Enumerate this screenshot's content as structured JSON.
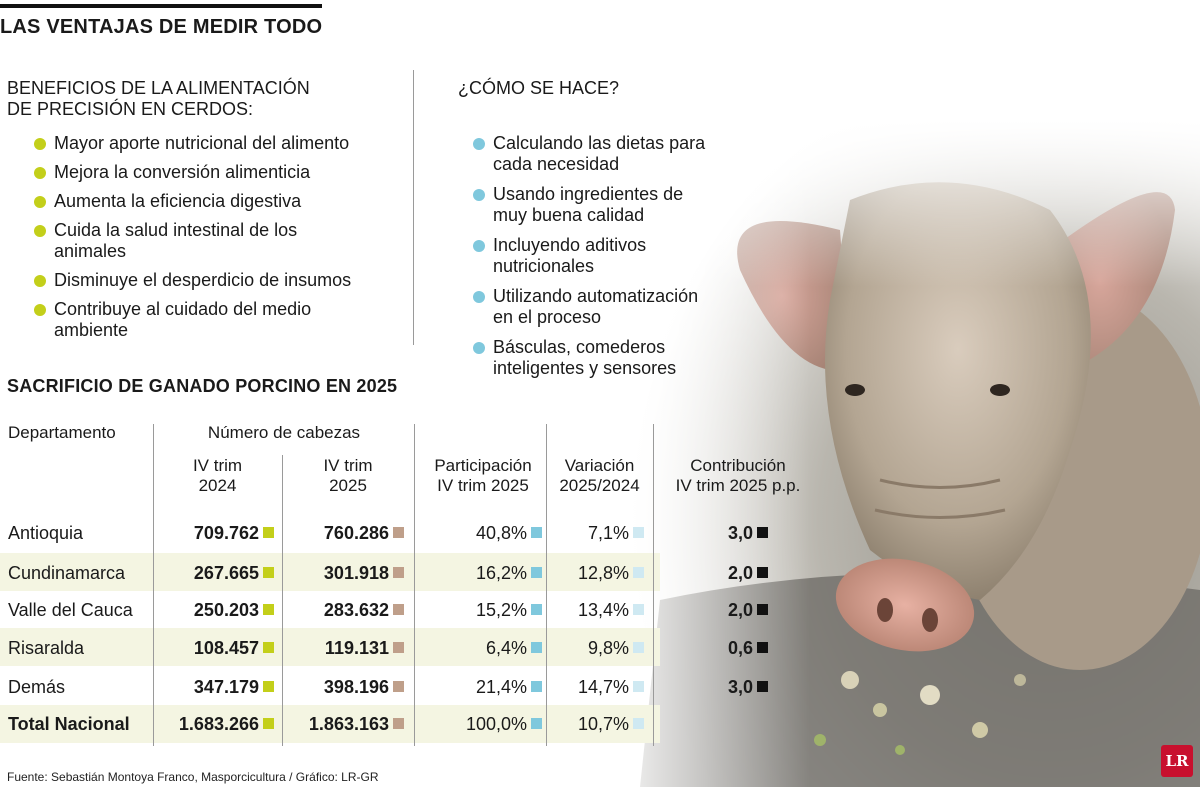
{
  "title": "LAS VENTAJAS DE MEDIR TODO",
  "benefits": {
    "title_line1": "BENEFICIOS DE LA ALIMENTACIÓN",
    "title_line2": "DE PRECISIÓN EN CERDOS:",
    "items": [
      [
        "Mayor aporte nutricional del alimento"
      ],
      [
        "Mejora la conversión alimenticia"
      ],
      [
        "Aumenta la eficiencia digestiva"
      ],
      [
        "Cuida la salud intestinal de los",
        "animales"
      ],
      [
        "Disminuye el desperdicio de insumos"
      ],
      [
        "Contribuye al cuidado del medio",
        "ambiente"
      ]
    ]
  },
  "how": {
    "title": "¿CÓMO SE HACE?",
    "items": [
      [
        "Calculando las dietas para",
        "cada necesidad"
      ],
      [
        "Usando ingredientes de",
        "muy buena calidad"
      ],
      [
        "Incluyendo aditivos",
        "nutricionales"
      ],
      [
        "Utilizando automatización",
        "en el proceso"
      ],
      [
        "Básculas, comederos",
        "inteligentes y sensores"
      ]
    ]
  },
  "table": {
    "title": "SACRIFICIO DE GANADO PORCINO EN 2025",
    "headers": {
      "departamento": "Departamento",
      "numero_cabezas": "Número de cabezas",
      "iv2024_l1": "IV trim",
      "iv2024_l2": "2024",
      "iv2025_l1": "IV trim",
      "iv2025_l2": "2025",
      "part_l1": "Participación",
      "part_l2": "IV trim 2025",
      "var_l1": "Variación",
      "var_l2": "2025/2024",
      "contrib_l1": "Contribución",
      "contrib_l2": "IV trim 2025 p.p."
    },
    "rows": [
      {
        "name": "Antioquia",
        "y2024": "709.762",
        "y2025": "760.286",
        "part": "40,8%",
        "var": "7,1%",
        "contrib": "3,0"
      },
      {
        "name": "Cundinamarca",
        "y2024": "267.665",
        "y2025": "301.918",
        "part": "16,2%",
        "var": "12,8%",
        "contrib": "2,0"
      },
      {
        "name": "Valle del Cauca",
        "y2024": "250.203",
        "y2025": "283.632",
        "part": "15,2%",
        "var": "13,4%",
        "contrib": "2,0"
      },
      {
        "name": "Risaralda",
        "y2024": "108.457",
        "y2025": "119.131",
        "part": "6,4%",
        "var": "9,8%",
        "contrib": "0,6"
      },
      {
        "name": "Demás",
        "y2024": "347.179",
        "y2025": "398.196",
        "part": "21,4%",
        "var": "14,7%",
        "contrib": "3,0"
      },
      {
        "name": "Total Nacional",
        "y2024": "1.683.266",
        "y2025": "1.863.163",
        "part": "100,0%",
        "var": "10,7%",
        "contrib": ""
      }
    ]
  },
  "colors": {
    "green": "#c3cf1a",
    "brown": "#bf9f8a",
    "cyan": "#7fc8dd",
    "light_cyan": "#cfe9f2",
    "black": "#111111",
    "row_shade": "#f4f5e2"
  },
  "source": "Fuente: Sebastián Montoya Franco, Masporcicultura / Gráfico: LR-GR",
  "logo": "LR"
}
